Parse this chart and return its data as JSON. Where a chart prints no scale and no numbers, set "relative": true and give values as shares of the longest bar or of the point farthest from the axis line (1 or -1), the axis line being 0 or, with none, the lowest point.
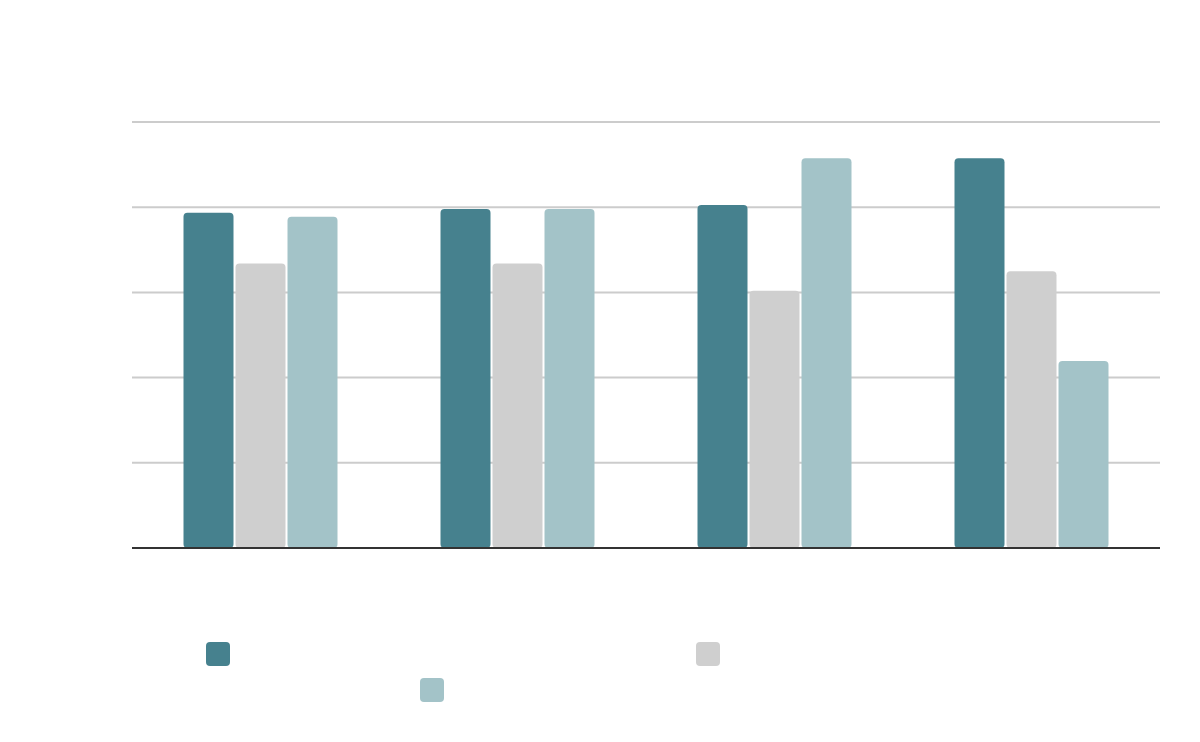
{
  "chart_data": {
    "type": "bar",
    "categories": [
      null,
      null,
      null,
      null
    ],
    "relative": true,
    "grid": true,
    "series": [
      {
        "color": "#46818e",
        "values": [
          0.86,
          0.87,
          0.88,
          1.0
        ]
      },
      {
        "color": "#cfcfcf",
        "values": [
          0.73,
          0.73,
          0.66,
          0.71
        ]
      },
      {
        "color": "#a3c3c8",
        "values": [
          0.85,
          0.87,
          1.0,
          0.48
        ]
      }
    ]
  }
}
